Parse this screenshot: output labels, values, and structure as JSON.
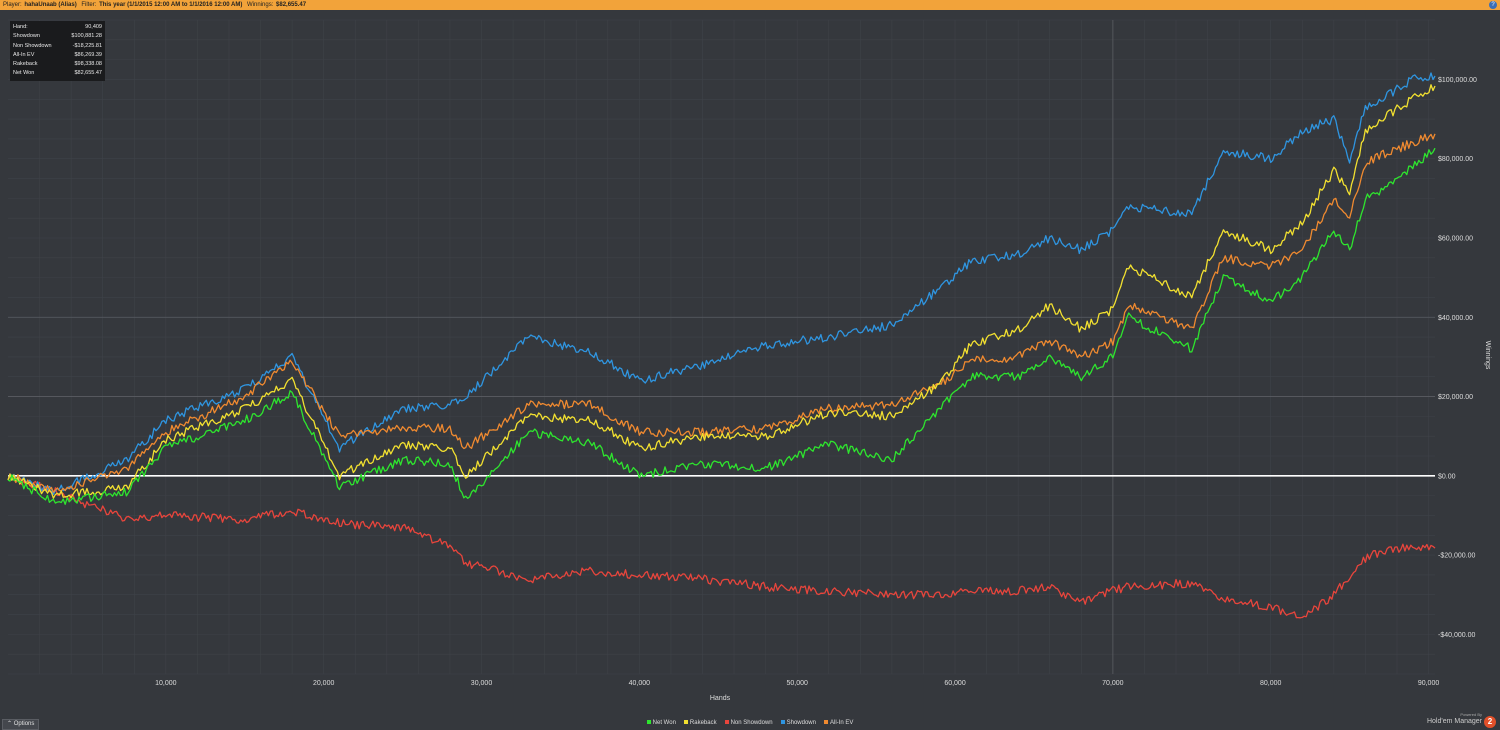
{
  "header": {
    "player_label": "Player:",
    "player": "hahaUnaab (Alias)",
    "filter_label": "Filter:",
    "filter": "This year (1/1/2015 12:00 AM to 1/1/2016 12:00 AM)",
    "winnings_label": "Winnings:",
    "winnings": "$82,655.47",
    "help_glyph": "?"
  },
  "stats": [
    {
      "label": "Hand:",
      "value": "90,409"
    },
    {
      "label": "Showdown",
      "value": "$100,881.28"
    },
    {
      "label": "Non Showdown",
      "value": "-$18,225.81"
    },
    {
      "label": "All-In EV",
      "value": "$86,269.39"
    },
    {
      "label": "Rakeback",
      "value": "$98,338.08"
    },
    {
      "label": "Net Won",
      "value": "$82,655.47"
    }
  ],
  "options_button": "Options",
  "branding": {
    "powered": "Powered By",
    "name": "Hold'em Manager",
    "badge": "2"
  },
  "chart_data": {
    "type": "line",
    "xlabel": "Hands",
    "ylabel": "Winnings",
    "xlim": [
      0,
      90409
    ],
    "ylim": [
      -50000,
      115000
    ],
    "x_ticks": [
      10000,
      20000,
      30000,
      40000,
      50000,
      60000,
      70000,
      80000,
      90000
    ],
    "x_tick_labels": [
      "10,000",
      "20,000",
      "30,000",
      "40,000",
      "50,000",
      "60,000",
      "70,000",
      "80,000",
      "90,000"
    ],
    "y_ticks": [
      -40000,
      -20000,
      0,
      20000,
      40000,
      60000,
      80000,
      100000
    ],
    "y_tick_labels": [
      "-$40,000.00",
      "-$20,000.00",
      "$0.00",
      "$20,000.00",
      "$40,000.00",
      "$60,000.00",
      "$80,000.00",
      "$100,000.00"
    ],
    "grid": true,
    "legend_position": "bottom-center",
    "x": [
      0,
      3000,
      7500,
      10000,
      15000,
      18000,
      21000,
      25000,
      28000,
      29000,
      33000,
      37000,
      40000,
      44000,
      48000,
      52000,
      56000,
      59000,
      61000,
      64000,
      66000,
      68000,
      70000,
      71000,
      75000,
      77000,
      80000,
      82000,
      84000,
      85000,
      86000,
      87000,
      89000,
      90409
    ],
    "series": [
      {
        "name": "Net Won",
        "color": "#2ee52e",
        "values": [
          0,
          -7000,
          -4000,
          7000,
          14000,
          21000,
          -3000,
          4000,
          3000,
          -6000,
          11000,
          8000,
          0,
          3000,
          2000,
          8000,
          4000,
          17000,
          25000,
          25000,
          30000,
          25000,
          30000,
          40000,
          32000,
          50000,
          44000,
          50000,
          62000,
          57000,
          70000,
          72000,
          78000,
          82655
        ]
      },
      {
        "name": "Rakeback",
        "color": "#f2e030",
        "values": [
          0,
          -5000,
          -3000,
          9000,
          17000,
          24000,
          0,
          8000,
          7000,
          0,
          15000,
          14000,
          7000,
          10000,
          10000,
          16000,
          15000,
          23000,
          33000,
          37000,
          43000,
          37000,
          42000,
          53000,
          45000,
          62000,
          57000,
          64000,
          77000,
          72000,
          87000,
          90000,
          95000,
          98338
        ]
      },
      {
        "name": "Non Showdown",
        "color": "#e8453c",
        "values": [
          0,
          -4000,
          -11000,
          -10000,
          -11000,
          -9000,
          -12000,
          -13000,
          -18000,
          -22000,
          -26000,
          -24000,
          -25000,
          -26000,
          -28000,
          -29000,
          -30000,
          -30000,
          -29000,
          -29000,
          -28000,
          -32000,
          -29000,
          -28000,
          -27000,
          -31000,
          -33000,
          -36000,
          -30000,
          -25000,
          -21000,
          -19000,
          -18000,
          -18226
        ]
      },
      {
        "name": "Showdown",
        "color": "#2f95e0",
        "values": [
          0,
          -4000,
          4000,
          14000,
          22000,
          30000,
          7000,
          17000,
          18000,
          20000,
          35000,
          31000,
          24000,
          28000,
          33000,
          35000,
          38000,
          47000,
          54000,
          56000,
          60000,
          57000,
          62000,
          68000,
          66000,
          82000,
          80000,
          87000,
          90000,
          80000,
          93000,
          95000,
          100000,
          100881
        ]
      },
      {
        "name": "All-In EV",
        "color": "#f08a30",
        "values": [
          0,
          -4000,
          2000,
          11000,
          20000,
          29000,
          10000,
          12000,
          12000,
          7000,
          18000,
          18000,
          11000,
          11000,
          12000,
          17000,
          18000,
          23000,
          29000,
          30000,
          34000,
          30000,
          34000,
          43000,
          37000,
          55000,
          53000,
          57000,
          70000,
          65000,
          79000,
          81000,
          84000,
          86269
        ]
      }
    ]
  }
}
